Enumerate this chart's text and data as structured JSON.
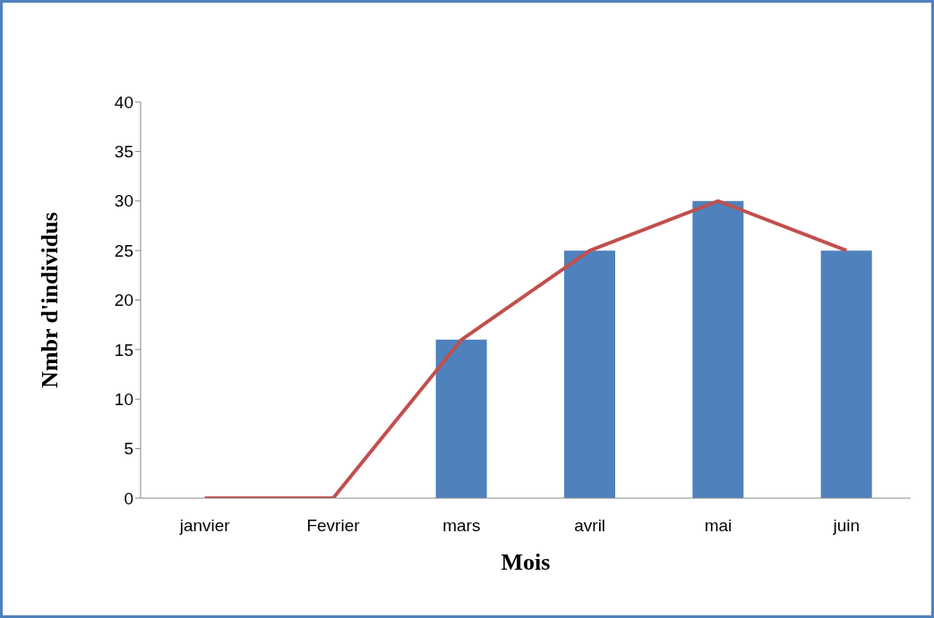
{
  "chart_data": {
    "type": "bar",
    "xlabel": "Mois",
    "ylabel": "Nmbr d'individus",
    "categories": [
      "janvier",
      "Fevrier",
      "mars",
      "avril",
      "mai",
      "juin"
    ],
    "series": [
      {
        "color": "#4f81bd",
        "values": [
          0,
          0,
          16,
          25,
          30,
          25
        ]
      },
      {
        "type": "line",
        "color": "#c0504d",
        "values": [
          0,
          0,
          16,
          25,
          30,
          25
        ]
      }
    ],
    "ylim": [
      0,
      40
    ],
    "yticks": [
      0,
      5,
      10,
      15,
      20,
      25,
      30,
      35,
      40
    ],
    "grid": false,
    "legend": false,
    "marker": "none",
    "line_style": "solid"
  }
}
